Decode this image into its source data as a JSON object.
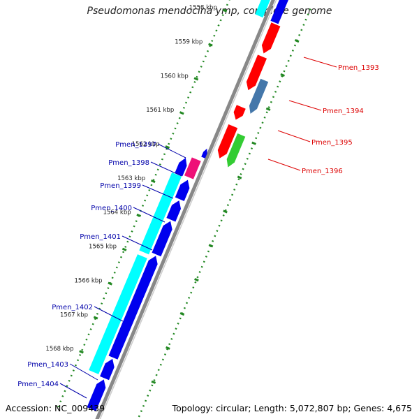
{
  "title": "Pseudomonas mendocina ymp, complete genome",
  "accession": "Accession: NC_009439",
  "topology": "Topology: circular; Length: 5,072,807 bp; Genes: 4,675",
  "colors": {
    "forward_cds": "#ff0000",
    "reverse_cds": "#0000ee",
    "cyan_feature": "#00ffff",
    "pink_feature": "#ee1177",
    "green_feature": "#33cc33",
    "steel_feature": "#4477aa",
    "ruler": "#228822",
    "backbone": "#888888",
    "label_top": "#dd0000",
    "label_bottom": "#0000aa"
  },
  "kbp_marks": [
    "1558 kbp",
    "1559 kbp",
    "1560 kbp",
    "1561 kbp",
    "1562 kbp",
    "1563 kbp",
    "1564 kbp",
    "1565 kbp",
    "1566 kbp",
    "1567 kbp",
    "1568 kbp"
  ],
  "gene_labels_top_strand": [
    "Pmen_1393",
    "Pmen_1394",
    "Pmen_1395",
    "Pmen_1396"
  ],
  "gene_labels_bottom_strand": [
    "Pmen_1397",
    "Pmen_1398",
    "Pmen_1399",
    "Pmen_1400",
    "Pmen_1401",
    "Pmen_1402",
    "Pmen_1403",
    "Pmen_1404"
  ]
}
